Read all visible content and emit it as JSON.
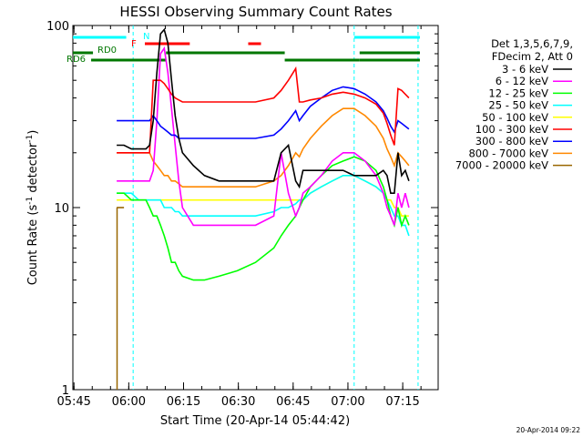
{
  "chart_data": {
    "type": "line",
    "title": "HESSI Observing Summary Count Rates",
    "xlabel": "Start Time (20-Apr-14 05:44:42)",
    "ylabel_main": "Count Rate (s",
    "ylabel_sup": "-1",
    "ylabel_tail": " detector",
    "ylabel_sup2": "-1",
    "ylabel_close": ")",
    "y_scale": "log",
    "ylim": [
      1,
      100
    ],
    "xlim_minutes": [
      0,
      100
    ],
    "x_ticks": [
      {
        "t": 0.3,
        "label": "05:45"
      },
      {
        "t": 15.3,
        "label": "06:00"
      },
      {
        "t": 30.3,
        "label": "06:15"
      },
      {
        "t": 45.3,
        "label": "06:30"
      },
      {
        "t": 60.3,
        "label": "06:45"
      },
      {
        "t": 75.3,
        "label": "07:00"
      },
      {
        "t": 90.3,
        "label": "07:15"
      }
    ],
    "y_ticks": [
      {
        "v": 1,
        "label": "1"
      },
      {
        "v": 10,
        "label": "10"
      },
      {
        "v": 100,
        "label": "100"
      }
    ],
    "legend_header": [
      "Det 1,3,5,6,7,9,",
      "FDecim 2, Att 0"
    ],
    "legend_position": "right",
    "series": [
      {
        "name": "3 - 6 keV",
        "color": "#000000",
        "x": [
          12,
          13,
          14,
          16,
          18,
          20,
          21,
          22,
          23,
          24,
          25,
          26,
          27,
          28,
          29,
          30,
          33,
          36,
          40,
          45,
          50,
          55,
          57,
          59,
          61,
          62,
          63,
          65,
          68,
          71,
          74,
          77,
          80,
          83,
          85,
          86,
          87,
          88,
          89,
          90,
          91,
          92
        ],
        "y": [
          22,
          22,
          22,
          21,
          21,
          21,
          22,
          30,
          55,
          90,
          95,
          80,
          50,
          32,
          24,
          20,
          17,
          15,
          14,
          14,
          14,
          14,
          20,
          22,
          14,
          13,
          16,
          16,
          16,
          16,
          16,
          15,
          15,
          15,
          16,
          15,
          12,
          12,
          20,
          15,
          16,
          14
        ]
      },
      {
        "name": "6 - 12 keV",
        "color": "#ff00ff",
        "x": [
          12,
          13,
          14,
          16,
          18,
          20,
          21,
          22,
          23,
          24,
          25,
          26,
          27,
          28,
          29,
          30,
          33,
          36,
          40,
          45,
          50,
          55,
          57,
          59,
          61,
          62,
          63,
          65,
          68,
          71,
          74,
          77,
          80,
          83,
          85,
          86,
          87,
          88,
          89,
          90,
          91,
          92
        ],
        "y": [
          14,
          14,
          14,
          14,
          14,
          14,
          14,
          16,
          30,
          70,
          75,
          55,
          35,
          22,
          14,
          10,
          8,
          8,
          8,
          8,
          8,
          9,
          20,
          12,
          9,
          10,
          12,
          13,
          15,
          18,
          20,
          20,
          18,
          15,
          12,
          10,
          9,
          8,
          12,
          10,
          12,
          10
        ]
      },
      {
        "name": "12 - 25 keV",
        "color": "#00ff00",
        "x": [
          12,
          13,
          14,
          16,
          18,
          20,
          21,
          22,
          23,
          24,
          25,
          26,
          27,
          28,
          29,
          30,
          33,
          36,
          40,
          45,
          50,
          55,
          57,
          59,
          61,
          62,
          63,
          65,
          68,
          71,
          74,
          77,
          80,
          83,
          85,
          86,
          87,
          88,
          89,
          90,
          91,
          92
        ],
        "y": [
          12,
          12,
          12,
          11,
          11,
          11,
          10,
          9,
          9,
          8,
          7,
          6,
          5,
          5,
          4.5,
          4.2,
          4.0,
          4.0,
          4.2,
          4.5,
          5,
          6,
          7,
          8,
          9,
          10,
          11,
          13,
          15,
          17,
          18,
          19,
          18,
          16,
          13,
          11,
          9,
          8,
          10,
          8,
          9,
          8
        ]
      },
      {
        "name": "25 - 50 keV",
        "color": "#00ffff",
        "x": [
          12,
          13,
          14,
          16,
          18,
          20,
          21,
          22,
          23,
          24,
          25,
          26,
          27,
          28,
          29,
          30,
          33,
          36,
          40,
          45,
          50,
          55,
          57,
          59,
          61,
          62,
          63,
          65,
          68,
          71,
          74,
          77,
          80,
          83,
          85,
          86,
          87,
          88,
          89,
          90,
          91,
          92
        ],
        "y": [
          12,
          12,
          12,
          12,
          11,
          11,
          11,
          11,
          11,
          11,
          10,
          10,
          10,
          9.5,
          9.5,
          9,
          9,
          9,
          9,
          9,
          9,
          9.5,
          10,
          10,
          10.5,
          11,
          11,
          12,
          13,
          14,
          15,
          15,
          14,
          13,
          12,
          11,
          10,
          9,
          9,
          8,
          8,
          7
        ]
      },
      {
        "name": "50 - 100 keV",
        "color": "#ffff00",
        "x": [
          12,
          13,
          14,
          16,
          18,
          20,
          21,
          22,
          23,
          24,
          25,
          26,
          27,
          28,
          29,
          30,
          33,
          36,
          40,
          45,
          50,
          55,
          57,
          59,
          61,
          62,
          63,
          65,
          68,
          71,
          74,
          77,
          80,
          83,
          85,
          86,
          87,
          88,
          89,
          90,
          91,
          92
        ],
        "y": [
          11,
          11,
          11,
          11,
          11,
          11,
          11,
          11,
          11,
          11,
          11,
          11,
          11,
          11,
          11,
          11,
          11,
          11,
          11,
          11,
          11,
          11,
          11,
          11,
          11,
          11,
          11,
          12,
          13,
          14,
          15,
          15,
          14,
          13,
          12,
          11,
          11,
          10,
          10,
          9,
          9,
          9
        ]
      },
      {
        "name": "100 - 300 keV",
        "color": "#ff0000",
        "x": [
          12,
          13,
          14,
          16,
          18,
          20,
          21,
          22,
          23,
          24,
          25,
          26,
          27,
          28,
          29,
          30,
          33,
          36,
          40,
          45,
          50,
          55,
          57,
          59,
          61,
          62,
          63,
          65,
          68,
          71,
          74,
          77,
          80,
          83,
          85,
          86,
          87,
          88,
          89,
          90,
          91,
          92
        ],
        "y": [
          20,
          20,
          20,
          20,
          20,
          20,
          20,
          50,
          50,
          50,
          48,
          45,
          42,
          40,
          39,
          38,
          38,
          38,
          38,
          38,
          38,
          40,
          44,
          50,
          58,
          38,
          38,
          39,
          40,
          42,
          43,
          42,
          40,
          37,
          33,
          29,
          25,
          22,
          45,
          44,
          42,
          40
        ]
      },
      {
        "name": "300 - 800 keV",
        "color": "#0000ff",
        "x": [
          12,
          13,
          14,
          16,
          18,
          20,
          21,
          22,
          23,
          24,
          25,
          26,
          27,
          28,
          29,
          30,
          33,
          36,
          40,
          45,
          50,
          55,
          57,
          59,
          61,
          62,
          63,
          65,
          68,
          71,
          74,
          77,
          80,
          83,
          85,
          86,
          87,
          88,
          89,
          90,
          91,
          92
        ],
        "y": [
          30,
          30,
          30,
          30,
          30,
          30,
          30,
          32,
          30,
          28,
          27,
          26,
          25,
          25,
          24,
          24,
          24,
          24,
          24,
          24,
          24,
          25,
          27,
          30,
          34,
          30,
          32,
          36,
          40,
          44,
          46,
          45,
          42,
          38,
          34,
          31,
          28,
          26,
          30,
          29,
          28,
          27
        ]
      },
      {
        "name": "800 - 7000 keV",
        "color": "#ff8800",
        "x": [
          12,
          13,
          14,
          16,
          18,
          20,
          21,
          22,
          23,
          24,
          25,
          26,
          27,
          28,
          29,
          30,
          33,
          36,
          40,
          45,
          50,
          55,
          57,
          59,
          61,
          62,
          63,
          65,
          68,
          71,
          74,
          77,
          80,
          83,
          85,
          86,
          87,
          88,
          89,
          90,
          91,
          92
        ],
        "y": [
          20,
          20,
          20,
          20,
          20,
          20,
          20,
          18,
          17,
          16,
          15,
          15,
          14,
          14,
          13.5,
          13,
          13,
          13,
          13,
          13,
          13,
          14,
          15,
          17,
          20,
          19,
          21,
          24,
          28,
          32,
          35,
          35,
          32,
          28,
          24,
          21,
          19,
          17,
          20,
          19,
          18,
          17
        ]
      },
      {
        "name": "7000 - 20000 keV",
        "color": "#996600",
        "x": [
          12,
          13,
          14
        ],
        "y": [
          10,
          10,
          10
        ]
      }
    ],
    "state_bars": [
      {
        "label": "N",
        "color": "#00ffff",
        "row": "N",
        "segments": [
          [
            0.0,
            14.6
          ],
          [
            77.0,
            95.0
          ]
        ]
      },
      {
        "label": "F",
        "color": "#ff0000",
        "row": "F",
        "segments": [
          [
            19.7,
            32.0
          ],
          [
            48.0,
            51.5
          ]
        ]
      },
      {
        "label": "RD0",
        "color": "#007700",
        "row": "RD0",
        "segments": [
          [
            0.0,
            5.5
          ],
          [
            25.5,
            58.0
          ],
          [
            78.5,
            95.0
          ]
        ]
      },
      {
        "label": "RD6",
        "color": "#007700",
        "row": "RD6",
        "segments": [
          [
            5.0,
            25.5
          ],
          [
            58.0,
            78.5
          ],
          [
            78.5,
            95.0
          ]
        ]
      }
    ],
    "night_markers": [
      16.5,
      77.0,
      94.5
    ]
  },
  "footer_date": "20-Apr-2014 09:22"
}
